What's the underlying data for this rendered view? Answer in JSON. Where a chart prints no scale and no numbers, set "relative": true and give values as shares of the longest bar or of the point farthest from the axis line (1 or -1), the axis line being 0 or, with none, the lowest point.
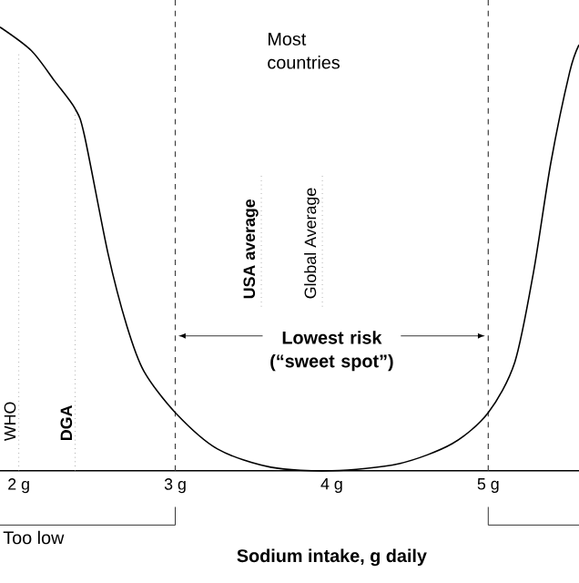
{
  "chart_data": {
    "type": "line",
    "relative": true,
    "xlabel": "Sodium intake, g daily",
    "x": [
      1.88,
      2.08,
      2.23,
      2.36,
      2.42,
      2.57,
      2.69,
      2.8,
      3.0,
      3.27,
      3.61,
      4.0,
      4.43,
      4.77,
      5.0,
      5.17,
      5.29,
      5.4,
      5.52,
      5.58
    ],
    "series": [
      {
        "color": "#000000",
        "values": [
          1.0,
          0.947,
          0.878,
          0.816,
          0.755,
          0.49,
          0.327,
          0.224,
          0.131,
          0.049,
          0.008,
          0.0,
          0.016,
          0.061,
          0.131,
          0.245,
          0.449,
          0.694,
          0.898,
          0.96
        ]
      }
    ],
    "xlim": [
      1.88,
      5.58
    ],
    "xticks": [
      {
        "value": 2,
        "label": "2 g"
      },
      {
        "value": 3,
        "label": "3 g"
      },
      {
        "value": 4,
        "label": "4 g"
      },
      {
        "value": 5,
        "label": "5 g"
      }
    ],
    "ref_lines": [
      {
        "axis": "x",
        "value": 2,
        "label": "WHO",
        "line_style": "dotted",
        "color": "#808080"
      },
      {
        "axis": "x",
        "value": 2.36,
        "label": "DGA",
        "line_style": "dotted",
        "color": "#808080"
      },
      {
        "axis": "x",
        "value": 3.55,
        "label": "USA average",
        "line_style": "dotted",
        "color": "#808080"
      },
      {
        "axis": "x",
        "value": 3.94,
        "label": "Global Average",
        "line_style": "dotted",
        "color": "#808080"
      },
      {
        "axis": "x",
        "value": 3,
        "line_style": "dashed",
        "color": "#404040"
      },
      {
        "axis": "x",
        "value": 5,
        "line_style": "dashed",
        "color": "#404040"
      }
    ],
    "annotations": [
      "Most countries",
      "Lowest risk (“sweet spot”)",
      "Too low"
    ],
    "grid": false,
    "marker": "none",
    "line_style": "solid"
  }
}
